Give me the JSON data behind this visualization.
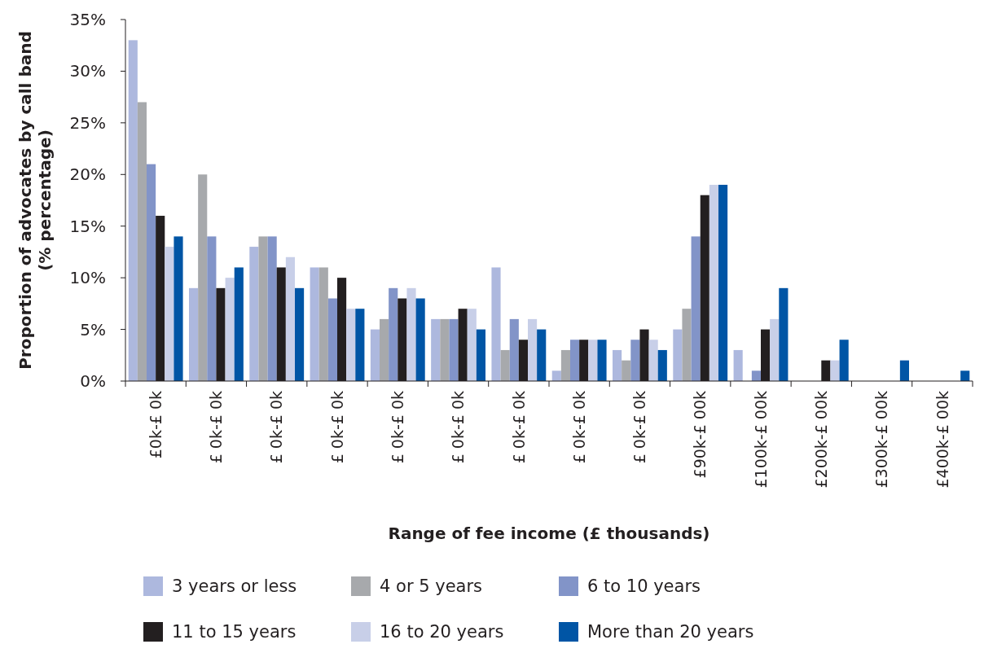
{
  "chart_data": {
    "type": "bar",
    "xlabel": "Range of fee income (£ thousands)",
    "ylabel": "Proportion of advocates by call band (% percentage)",
    "categories": [
      "£0k-£ 0k",
      "£ 0k-£ 0k",
      "£ 0k-£ 0k",
      "£ 0k-£ 0k",
      "£ 0k-£ 0k",
      "£ 0k-£ 0k",
      "£ 0k-£ 0k",
      "£ 0k-£ 0k",
      "£ 0k-£ 0k",
      "£90k-£ 00k",
      "£100k-£ 00k",
      "£200k-£ 00k",
      "£300k-£ 00k",
      "£400k-£ 00k"
    ],
    "series": [
      {
        "name": "3 years or less",
        "color": "#adb8de",
        "values": [
          33,
          9,
          13,
          11,
          5,
          6,
          11,
          1,
          3,
          5,
          3,
          0,
          0,
          0
        ]
      },
      {
        "name": "4 or 5 years",
        "color": "#a7a9ac",
        "values": [
          27,
          20,
          14,
          11,
          6,
          6,
          3,
          3,
          2,
          7,
          0,
          0,
          0,
          0
        ]
      },
      {
        "name": "6 to 10 years",
        "color": "#8294c8",
        "values": [
          21,
          14,
          14,
          8,
          9,
          6,
          6,
          4,
          4,
          14,
          1,
          0,
          0,
          0
        ]
      },
      {
        "name": "11 to 15 years",
        "color": "#231f20",
        "values": [
          16,
          9,
          11,
          10,
          8,
          7,
          4,
          4,
          5,
          18,
          5,
          2,
          0,
          0
        ]
      },
      {
        "name": "16 to 20 years",
        "color": "#c8cfe8",
        "values": [
          13,
          10,
          12,
          7,
          9,
          7,
          6,
          4,
          4,
          19,
          6,
          2,
          0,
          0
        ]
      },
      {
        "name": "More than 20 years",
        "color": "#0055a5",
        "values": [
          14,
          11,
          9,
          7,
          8,
          5,
          5,
          4,
          3,
          19,
          9,
          4,
          2,
          1
        ]
      }
    ],
    "ylim": [
      0,
      35
    ],
    "yticks": [
      {
        "value": 0,
        "label": "0%"
      },
      {
        "value": 5,
        "label": "5%"
      },
      {
        "value": 10,
        "label": "10%"
      },
      {
        "value": 15,
        "label": "15%"
      },
      {
        "value": 20,
        "label": "20%"
      },
      {
        "value": 25,
        "label": "25%"
      },
      {
        "value": 30,
        "label": "30%"
      },
      {
        "value": 35,
        "label": "35%"
      }
    ],
    "grid": false,
    "legend": "bottom"
  }
}
